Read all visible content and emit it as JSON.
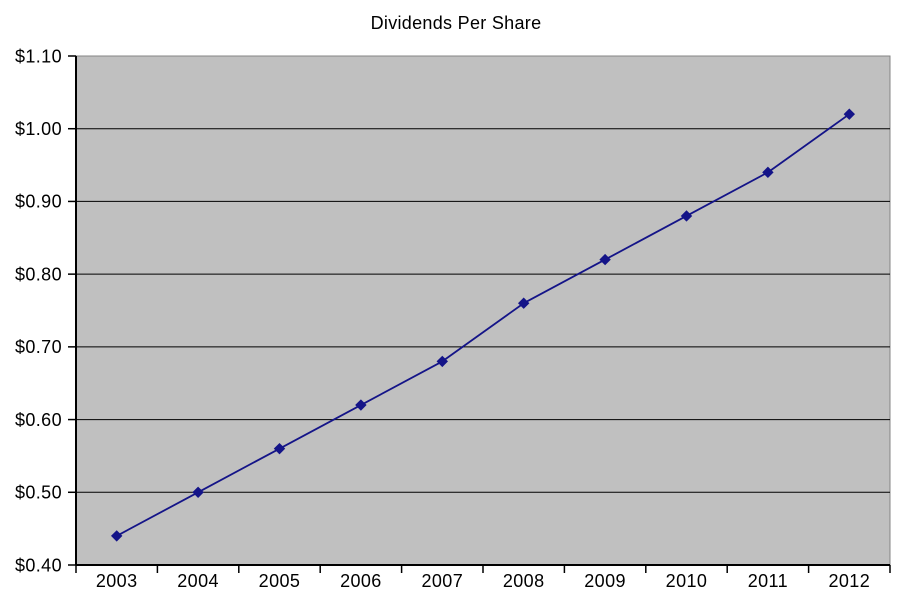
{
  "chart_data": {
    "type": "line",
    "title": "Dividends Per Share",
    "categories": [
      "2003",
      "2004",
      "2005",
      "2006",
      "2007",
      "2008",
      "2009",
      "2010",
      "2011",
      "2012"
    ],
    "series": [
      {
        "name": "Dividends Per Share",
        "values": [
          0.44,
          0.5,
          0.56,
          0.62,
          0.68,
          0.76,
          0.82,
          0.88,
          0.94,
          1.02
        ],
        "color": "#141488",
        "marker": "diamond"
      }
    ],
    "xlabel": "",
    "ylabel": "",
    "ylim": [
      0.4,
      1.1
    ],
    "y_ticks": [
      {
        "value": 0.4,
        "label": "$0.40"
      },
      {
        "value": 0.5,
        "label": "$0.50"
      },
      {
        "value": 0.6,
        "label": "$0.60"
      },
      {
        "value": 0.7,
        "label": "$0.70"
      },
      {
        "value": 0.8,
        "label": "$0.80"
      },
      {
        "value": 0.9,
        "label": "$0.90"
      },
      {
        "value": 1.0,
        "label": "$1.00"
      },
      {
        "value": 1.1,
        "label": "$1.10"
      }
    ],
    "grid": "horizontal",
    "legend": "none",
    "colors": {
      "plot_background": "#c0c0c0",
      "page_background": "#ffffff",
      "gridline": "#000000",
      "plot_border": "#848484",
      "axis": "#000000",
      "tick": "#000000",
      "text": "#000000"
    }
  }
}
